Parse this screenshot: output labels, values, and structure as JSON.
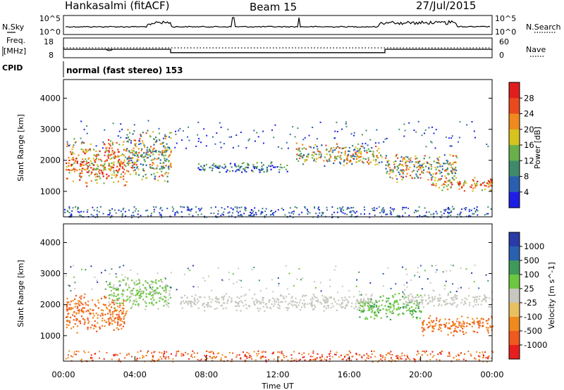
{
  "header": {
    "left": "Hankasalmi (fitACF)",
    "center": "Beam 15",
    "right": "27/Jul/2015"
  },
  "side_labels": {
    "nsky": "N.Sky",
    "nsearch": "N.Search",
    "freq_line1": "Freq.",
    "freq_line2": "[MHz]",
    "nave": "Nave",
    "cpid": "CPID"
  },
  "cpid_text": "normal (fast stereo) 153",
  "colors": {
    "power_bar": [
      "#1e1ee6",
      "#2a5fb0",
      "#3f8a6a",
      "#6ab04a",
      "#d7c31e",
      "#f08a1e",
      "#e84a1e",
      "#e01e1e"
    ],
    "velocity_bar": [
      "#e81e1e",
      "#ee5a1e",
      "#f08a1e",
      "#e9c060",
      "#c8c8c0",
      "#6cc840",
      "#3f9a5a",
      "#2a60b0",
      "#2a3aa8"
    ],
    "gray_scatter": "#c8c8c0"
  },
  "chart_data": [
    {
      "type": "line",
      "name": "noise-panel",
      "y_left_ticks": [
        "10^5",
        "10^0"
      ],
      "y_right_ticks": [
        "10^5",
        "10^0"
      ]
    },
    {
      "type": "line",
      "name": "freq-nave-panel",
      "y_left_ticks": [
        "18",
        "8"
      ],
      "y_right_ticks": [
        "60",
        "0"
      ],
      "freq_mhz": 12.5,
      "nave_steps": [
        {
          "start_hour": 0,
          "end_hour": 6,
          "nave": 25
        },
        {
          "start_hour": 6,
          "end_hour": 18,
          "nave": 13
        },
        {
          "start_hour": 18,
          "end_hour": 24,
          "nave": 25
        }
      ]
    },
    {
      "type": "heatmap",
      "name": "power",
      "x_range_hours": [
        0,
        24
      ],
      "y_range_km": [
        180,
        4600
      ],
      "ylabel": "Slant Range [km]",
      "yticks": [
        "4000",
        "3000",
        "2000",
        "1000"
      ],
      "colorbar_label": "Power [dB]",
      "colorbar_ticks": [
        "28",
        "24",
        "20",
        "16",
        "12",
        "8",
        "4"
      ],
      "patches": [
        {
          "start_hour": 0.1,
          "end_hour": 3.5,
          "range_km": [
            1100,
            2750
          ],
          "level": "high"
        },
        {
          "start_hour": 3.5,
          "end_hour": 6.0,
          "range_km": [
            1200,
            3100
          ],
          "level": "medium"
        },
        {
          "start_hour": 7.5,
          "end_hour": 12.5,
          "range_km": [
            1600,
            2000
          ],
          "level": "low"
        },
        {
          "start_hour": 13.0,
          "end_hour": 17.8,
          "range_km": [
            1800,
            2600
          ],
          "level": "medium"
        },
        {
          "start_hour": 18.0,
          "end_hour": 22.0,
          "range_km": [
            1300,
            2300
          ],
          "level": "medium"
        },
        {
          "start_hour": 20.5,
          "end_hour": 24.0,
          "range_km": [
            1000,
            1500
          ],
          "level": "high"
        }
      ]
    },
    {
      "type": "heatmap",
      "name": "velocity",
      "x_range_hours": [
        0,
        24
      ],
      "y_range_km": [
        180,
        4600
      ],
      "ylabel": "Slant Range [km]",
      "yticks": [
        "4000",
        "3000",
        "2000",
        "1000"
      ],
      "colorbar_label": "Velocity [m s^-1]",
      "colorbar_ticks": [
        "1000",
        "500",
        "100",
        "25",
        "-25",
        "-100",
        "-500",
        "-1000"
      ],
      "patches": [
        {
          "start_hour": 0.1,
          "end_hour": 3.5,
          "range_km": [
            1100,
            2400
          ],
          "level": "-300"
        },
        {
          "start_hour": 2.5,
          "end_hour": 6.0,
          "range_km": [
            1800,
            3000
          ],
          "level": "50"
        },
        {
          "start_hour": 6.5,
          "end_hour": 17.5,
          "range_km": [
            1800,
            2400
          ],
          "level": "0"
        },
        {
          "start_hour": 16.5,
          "end_hour": 20.0,
          "range_km": [
            1500,
            2400
          ],
          "level": "70"
        },
        {
          "start_hour": 19.0,
          "end_hour": 24.0,
          "range_km": [
            1900,
            2400
          ],
          "level": "0"
        },
        {
          "start_hour": 20.0,
          "end_hour": 24.0,
          "range_km": [
            1000,
            1700
          ],
          "level": "-300"
        }
      ],
      "xticks": [
        "00:00",
        "04:00",
        "08:00",
        "12:00",
        "16:00",
        "20:00",
        "00:00"
      ],
      "xlabel": "Time UT"
    }
  ]
}
